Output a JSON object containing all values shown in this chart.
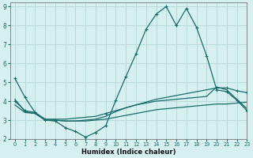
{
  "bg_color": "#d6f0f0",
  "grid_color": "#b8dada",
  "line_color": "#1a6b6b",
  "xlabel": "Humidex (Indice chaleur)",
  "xlim": [
    -0.5,
    23
  ],
  "ylim": [
    2,
    9.2
  ],
  "yticks": [
    2,
    3,
    4,
    5,
    6,
    7,
    8,
    9
  ],
  "xticks": [
    0,
    1,
    2,
    3,
    4,
    5,
    6,
    7,
    8,
    9,
    10,
    11,
    12,
    13,
    14,
    15,
    16,
    17,
    18,
    19,
    20,
    21,
    22,
    23
  ],
  "line1_x": [
    0,
    1,
    2,
    3,
    4,
    5,
    6,
    7,
    8,
    9,
    10,
    11,
    12,
    13,
    14,
    15,
    16,
    17,
    18,
    19,
    20,
    21,
    22,
    23
  ],
  "line1_y": [
    5.2,
    4.2,
    3.4,
    3.0,
    2.95,
    2.6,
    2.4,
    2.1,
    2.35,
    2.7,
    4.05,
    5.3,
    6.5,
    7.8,
    8.6,
    9.0,
    8.0,
    8.9,
    7.9,
    6.4,
    4.6,
    4.5,
    4.05,
    3.5
  ],
  "line2_x": [
    0,
    1,
    2,
    3,
    4,
    5,
    6,
    7,
    8,
    9,
    10,
    11,
    12,
    13,
    14,
    15,
    16,
    17,
    18,
    19,
    20,
    21,
    22,
    23
  ],
  "line2_y": [
    4.0,
    3.5,
    3.4,
    3.05,
    3.05,
    3.05,
    3.1,
    3.15,
    3.2,
    3.35,
    3.5,
    3.65,
    3.8,
    3.95,
    4.1,
    4.2,
    4.3,
    4.4,
    4.5,
    4.6,
    4.7,
    4.7,
    4.55,
    4.45
  ],
  "line3_x": [
    0,
    1,
    2,
    3,
    4,
    5,
    6,
    7,
    8,
    9,
    10,
    11,
    12,
    13,
    14,
    15,
    16,
    17,
    18,
    19,
    20,
    21,
    22,
    23
  ],
  "line3_y": [
    3.8,
    3.4,
    3.35,
    3.0,
    3.0,
    2.95,
    2.95,
    2.95,
    3.0,
    3.05,
    3.15,
    3.25,
    3.35,
    3.45,
    3.55,
    3.6,
    3.65,
    3.7,
    3.75,
    3.8,
    3.85,
    3.85,
    3.9,
    3.95
  ],
  "line4_x": [
    0,
    1,
    2,
    3,
    4,
    5,
    6,
    7,
    8,
    9,
    10,
    11,
    12,
    13,
    14,
    15,
    16,
    17,
    18,
    19,
    20,
    21,
    22,
    23
  ],
  "line4_y": [
    4.1,
    3.45,
    3.35,
    3.0,
    3.0,
    2.95,
    2.95,
    3.0,
    3.05,
    3.2,
    3.45,
    3.65,
    3.8,
    3.9,
    4.0,
    4.05,
    4.1,
    4.15,
    4.2,
    4.25,
    4.75,
    4.6,
    4.1,
    3.6
  ]
}
